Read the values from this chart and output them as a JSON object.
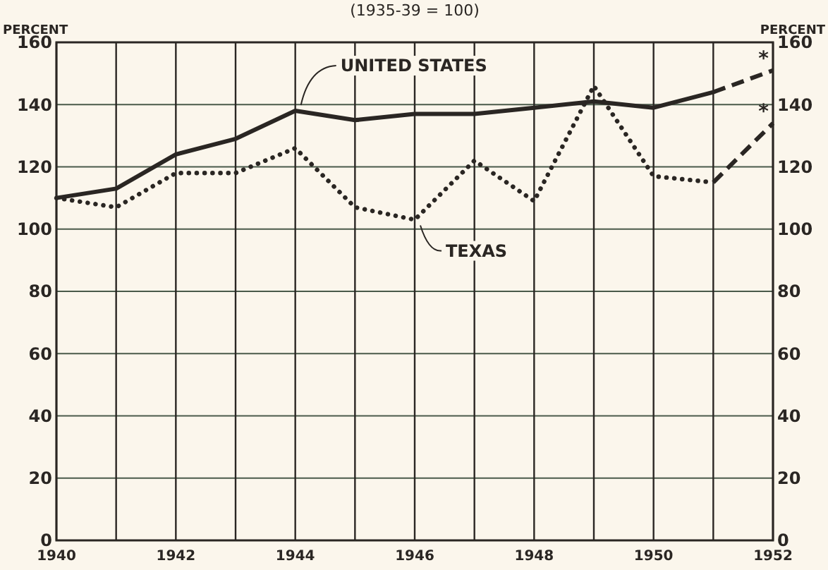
{
  "chart_data": {
    "type": "line",
    "subtitle": "(1935-39 = 100)",
    "ylabel": "PERCENT",
    "y2label": "PERCENT",
    "xlim": [
      1940,
      1952
    ],
    "xticks": [
      1940,
      {
        "value": 1941,
        "label": null
      },
      1942,
      {
        "value": 1943,
        "label": null
      },
      1944,
      {
        "value": 1945,
        "label": null
      },
      1946,
      {
        "value": 1947,
        "label": null
      },
      1948,
      {
        "value": 1949,
        "label": null
      },
      1950,
      {
        "value": 1951,
        "label": null
      },
      1952
    ],
    "ylim": [
      0,
      160
    ],
    "yticks": [
      0,
      20,
      40,
      60,
      80,
      100,
      120,
      140,
      160
    ],
    "y2lim": [
      0,
      160
    ],
    "y2ticks": [
      0,
      20,
      40,
      60,
      80,
      100,
      120,
      140,
      160
    ],
    "grid": true,
    "marker": "none",
    "series": [
      {
        "name": "UNITED STATES",
        "color": "#2a2623",
        "line_style": "solid",
        "x": [
          1940,
          1941,
          1942,
          1943,
          1944,
          1945,
          1946,
          1947,
          1948,
          1949,
          1950,
          1951
        ],
        "values": [
          110,
          113,
          124,
          129,
          138,
          135,
          137,
          137,
          139,
          141,
          139,
          144
        ]
      },
      {
        "color": "#2a2623",
        "line_style": "dashed",
        "x": [
          1951,
          1952
        ],
        "values": [
          144,
          151
        ]
      },
      {
        "name": "TEXAS",
        "color": "#2a2623",
        "line_style": "dotted",
        "x": [
          1940,
          1941,
          1942,
          1943,
          1944,
          1945,
          1946,
          1947,
          1948,
          1949,
          1950,
          1951
        ],
        "values": [
          110,
          107,
          118,
          118,
          126,
          107,
          103,
          122,
          109,
          146,
          117,
          115
        ]
      },
      {
        "color": "#2a2623",
        "line_style": "dashed",
        "x": [
          1951,
          1952
        ],
        "values": [
          115,
          134
        ]
      }
    ],
    "annotations": [
      {
        "text": "*",
        "x": 1952,
        "y": 151
      },
      {
        "text": "*",
        "x": 1952,
        "y": 134
      }
    ]
  }
}
